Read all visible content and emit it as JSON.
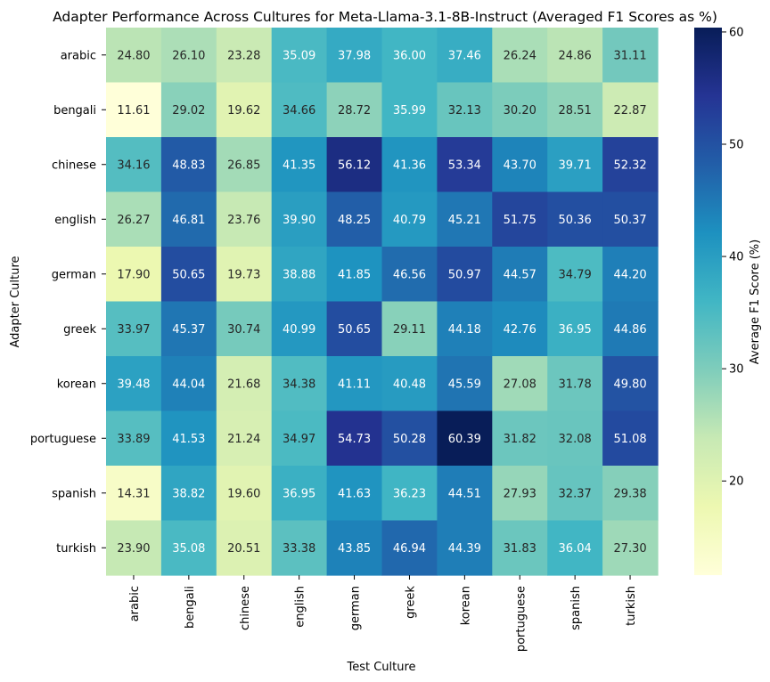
{
  "chart_data": {
    "type": "heatmap",
    "title": "Adapter Performance Across Cultures for Meta-Llama-3.1-8B-Instruct (Averaged F1 Scores as %)",
    "xlabel": "Test Culture",
    "ylabel": "Adapter Culture",
    "colorbar_label": "Average F1 Score (%)",
    "colormap": "YlGnBu",
    "value_range": [
      11.61,
      60.39
    ],
    "colorbar_ticks": [
      "20",
      "30",
      "40",
      "50",
      "60"
    ],
    "x_categories": [
      "arabic",
      "bengali",
      "chinese",
      "english",
      "german",
      "greek",
      "korean",
      "portuguese",
      "spanish",
      "turkish"
    ],
    "y_categories": [
      "arabic",
      "bengali",
      "chinese",
      "english",
      "german",
      "greek",
      "korean",
      "portuguese",
      "spanish",
      "turkish"
    ],
    "values": [
      [
        24.8,
        26.1,
        23.28,
        35.09,
        37.98,
        36.0,
        37.46,
        26.24,
        24.86,
        31.11
      ],
      [
        11.61,
        29.02,
        19.62,
        34.66,
        28.72,
        35.99,
        32.13,
        30.2,
        28.51,
        22.87
      ],
      [
        34.16,
        48.83,
        26.85,
        41.35,
        56.12,
        41.36,
        53.34,
        43.7,
        39.71,
        52.32
      ],
      [
        26.27,
        46.81,
        23.76,
        39.9,
        48.25,
        40.79,
        45.21,
        51.75,
        50.36,
        50.37
      ],
      [
        17.9,
        50.65,
        19.73,
        38.88,
        41.85,
        46.56,
        50.97,
        44.57,
        34.79,
        44.2
      ],
      [
        33.97,
        45.37,
        30.74,
        40.99,
        50.65,
        29.11,
        44.18,
        42.76,
        36.95,
        44.86
      ],
      [
        39.48,
        44.04,
        21.68,
        34.38,
        41.11,
        40.48,
        45.59,
        27.08,
        31.78,
        49.8
      ],
      [
        33.89,
        41.53,
        21.24,
        34.97,
        54.73,
        50.28,
        60.39,
        31.82,
        32.08,
        51.08
      ],
      [
        14.31,
        38.82,
        19.6,
        36.95,
        41.63,
        36.23,
        44.51,
        27.93,
        32.37,
        29.38
      ],
      [
        23.9,
        35.08,
        20.51,
        33.38,
        43.85,
        46.94,
        44.39,
        31.83,
        36.04,
        27.3
      ]
    ],
    "value_labels": [
      [
        "24.80",
        "26.10",
        "23.28",
        "35.09",
        "37.98",
        "36.00",
        "37.46",
        "26.24",
        "24.86",
        "31.11"
      ],
      [
        "11.61",
        "29.02",
        "19.62",
        "34.66",
        "28.72",
        "35.99",
        "32.13",
        "30.20",
        "28.51",
        "22.87"
      ],
      [
        "34.16",
        "48.83",
        "26.85",
        "41.35",
        "56.12",
        "41.36",
        "53.34",
        "43.70",
        "39.71",
        "52.32"
      ],
      [
        "26.27",
        "46.81",
        "23.76",
        "39.90",
        "48.25",
        "40.79",
        "45.21",
        "51.75",
        "50.36",
        "50.37"
      ],
      [
        "17.90",
        "50.65",
        "19.73",
        "38.88",
        "41.85",
        "46.56",
        "50.97",
        "44.57",
        "34.79",
        "44.20"
      ],
      [
        "33.97",
        "45.37",
        "30.74",
        "40.99",
        "50.65",
        "29.11",
        "44.18",
        "42.76",
        "36.95",
        "44.86"
      ],
      [
        "39.48",
        "44.04",
        "21.68",
        "34.38",
        "41.11",
        "40.48",
        "45.59",
        "27.08",
        "31.78",
        "49.80"
      ],
      [
        "33.89",
        "41.53",
        "21.24",
        "34.97",
        "54.73",
        "50.28",
        "60.39",
        "31.82",
        "32.08",
        "51.08"
      ],
      [
        "14.31",
        "38.82",
        "19.60",
        "36.95",
        "41.63",
        "36.23",
        "44.51",
        "27.93",
        "32.37",
        "29.38"
      ],
      [
        "23.90",
        "35.08",
        "20.51",
        "33.38",
        "43.85",
        "46.94",
        "44.39",
        "31.83",
        "36.04",
        "27.30"
      ]
    ]
  }
}
